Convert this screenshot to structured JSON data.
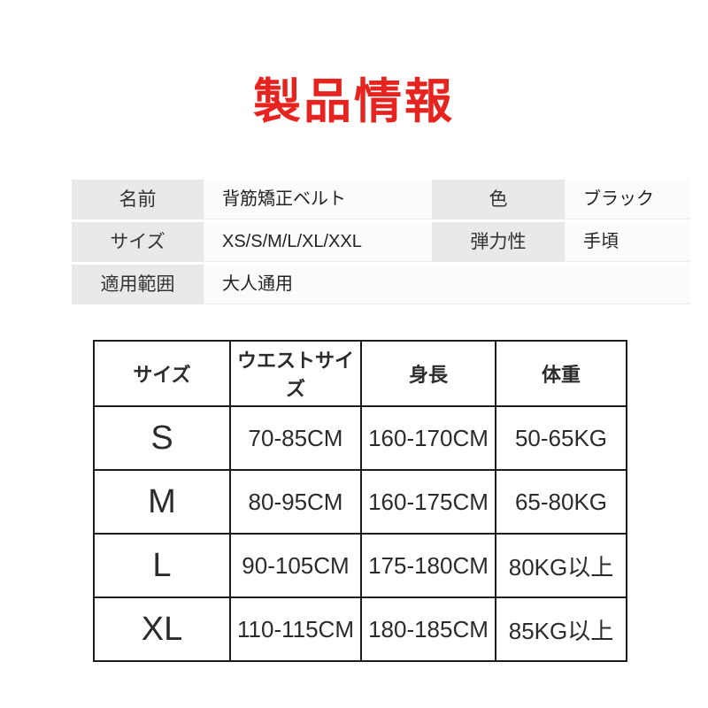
{
  "colors": {
    "accent_red": "#e6231e",
    "label_cell_bg": "#e9e9e9",
    "value_cell_bg": "#fbfbfb",
    "table_border": "#1c1c1c"
  },
  "header": {
    "title": "製品情報"
  },
  "spec_table": {
    "rows": [
      {
        "label1": "名前",
        "value1": "背筋矯正ベルト",
        "label2": "色",
        "value2": "ブラック"
      },
      {
        "label1": "サイズ",
        "value1": "XS/S/M/L/XL/XXL",
        "label2": "弾力性",
        "value2": "手頃"
      },
      {
        "label1": "適用範囲",
        "value1": "大人通用"
      }
    ]
  },
  "size_chart": {
    "type": "table",
    "headers": [
      "サイズ",
      "ウエストサイズ",
      "身長",
      "体重"
    ],
    "rows": [
      [
        "S",
        "70-85CM",
        "160-170CM",
        "50-65KG"
      ],
      [
        "M",
        "80-95CM",
        "160-175CM",
        "65-80KG"
      ],
      [
        "L",
        "90-105CM",
        "175-180CM",
        "80KG以上"
      ],
      [
        "XL",
        "110-115CM",
        "180-185CM",
        "85KG以上"
      ]
    ]
  }
}
